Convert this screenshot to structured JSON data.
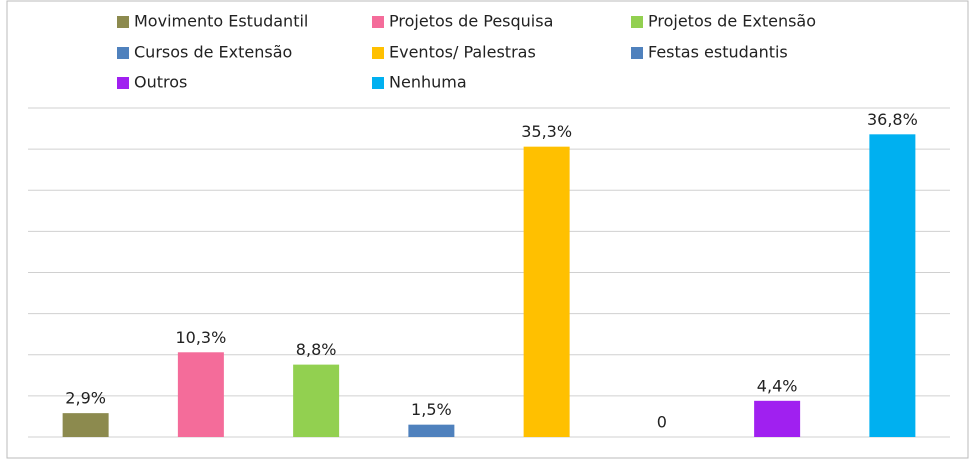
{
  "chart_data": {
    "type": "bar",
    "categories": [
      "Movimento Estudantil",
      "Projetos de Pesquisa",
      "Projetos de Extensão",
      "Cursos de Extensão",
      "Eventos/ Palestras",
      "Festas estudantis",
      "Outros",
      "Nenhuma"
    ],
    "values": [
      2.9,
      10.3,
      8.8,
      1.5,
      35.3,
      0,
      4.4,
      36.8
    ],
    "value_labels": [
      "2,9%",
      "10,3%",
      "8,8%",
      "1,5%",
      "35,3%",
      "0",
      "4,4%",
      "36,8%"
    ],
    "colors": [
      "#8c8a4e",
      "#f46c9a",
      "#92d050",
      "#4f81bd",
      "#ffc000",
      "#4f81bd",
      "#a020f0",
      "#00b0f0"
    ],
    "ylim": [
      0,
      40
    ],
    "yticks": [
      0,
      5,
      10,
      15,
      20,
      25,
      30,
      35,
      40
    ],
    "grid": true,
    "legend": "top"
  }
}
